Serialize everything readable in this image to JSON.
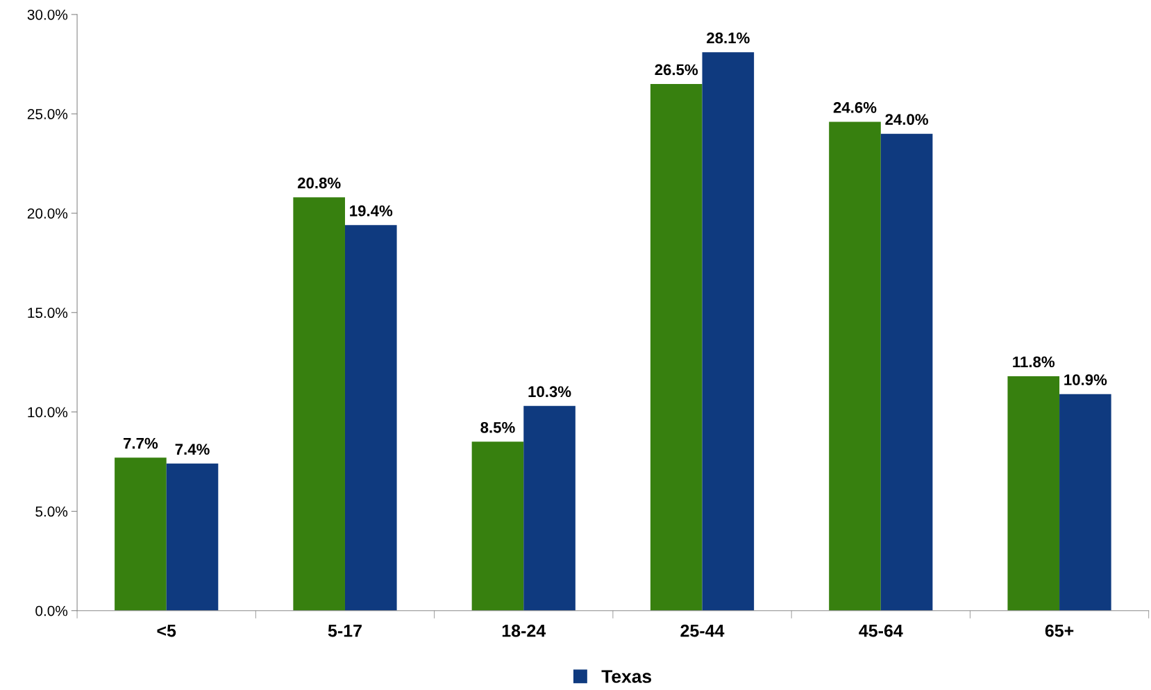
{
  "chart_data": {
    "type": "bar",
    "categories": [
      "<5",
      "5-17",
      "18-24",
      "25-44",
      "45-64",
      "65+"
    ],
    "series": [
      {
        "color": "#37800f",
        "values": [
          7.7,
          20.8,
          8.5,
          26.5,
          24.6,
          11.8
        ],
        "value_labels": [
          "7.7%",
          "20.8%",
          "8.5%",
          "26.5%",
          "24.6%",
          "11.8%"
        ]
      },
      {
        "name": "Texas",
        "color": "#0f3a7f",
        "values": [
          7.4,
          19.4,
          10.3,
          28.1,
          24.0,
          10.9
        ],
        "value_labels": [
          "7.4%",
          "19.4%",
          "10.3%",
          "28.1%",
          "24.0%",
          "10.9%"
        ]
      }
    ],
    "ylim": [
      0,
      30
    ],
    "yticks": [
      {
        "value": 0,
        "label": "0.0%"
      },
      {
        "value": 5,
        "label": "5.0%"
      },
      {
        "value": 10,
        "label": "10.0%"
      },
      {
        "value": 15,
        "label": "15.0%"
      },
      {
        "value": 20,
        "label": "20.0%"
      },
      {
        "value": 25,
        "label": "25.0%"
      },
      {
        "value": 30,
        "label": "30.0%"
      }
    ],
    "grid": false,
    "legend": "bottom"
  }
}
